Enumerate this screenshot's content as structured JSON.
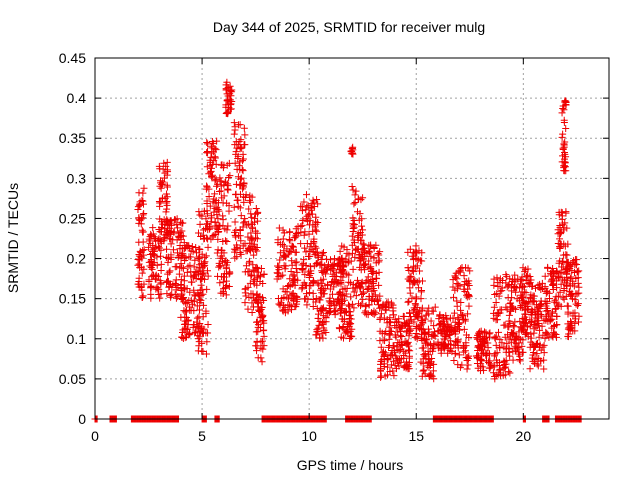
{
  "chart_data": {
    "type": "scatter",
    "title": "Day 344 of 2025, SRMTID for receiver mulg",
    "xlabel": "GPS time / hours",
    "ylabel": "SRMTID / TECUs",
    "xlim": [
      0,
      24
    ],
    "ylim": [
      0,
      0.45
    ],
    "xticks": [
      0,
      5,
      10,
      15,
      20
    ],
    "yticks": [
      0,
      0.05,
      0.1,
      0.15,
      0.2,
      0.25,
      0.3,
      0.35,
      0.4,
      0.45
    ],
    "marker": "+",
    "color": "#ee0000",
    "grid": true,
    "zero_runs": [
      [
        0.0,
        0.1
      ],
      [
        0.7,
        1.0
      ],
      [
        1.7,
        3.9
      ],
      [
        5.0,
        5.2
      ],
      [
        5.6,
        5.8
      ],
      [
        7.8,
        10.8
      ],
      [
        11.7,
        12.9
      ],
      [
        15.8,
        18.6
      ],
      [
        20.0,
        20.1
      ],
      [
        20.9,
        21.2
      ],
      [
        21.5,
        22.7
      ]
    ],
    "clusters": [
      {
        "x": [
          2.0,
          2.3
        ],
        "y": [
          0.15,
          0.29
        ]
      },
      {
        "x": [
          2.5,
          3.1
        ],
        "y": [
          0.15,
          0.24
        ]
      },
      {
        "x": [
          3.0,
          3.4
        ],
        "y": [
          0.22,
          0.32
        ]
      },
      {
        "x": [
          3.3,
          4.2
        ],
        "y": [
          0.15,
          0.25
        ]
      },
      {
        "x": [
          4.0,
          4.9
        ],
        "y": [
          0.1,
          0.22
        ]
      },
      {
        "x": [
          4.8,
          5.3
        ],
        "y": [
          0.08,
          0.26
        ]
      },
      {
        "x": [
          5.2,
          5.7
        ],
        "y": [
          0.22,
          0.35
        ]
      },
      {
        "x": [
          5.7,
          6.3
        ],
        "y": [
          0.15,
          0.32
        ]
      },
      {
        "x": [
          6.1,
          6.4
        ],
        "y": [
          0.38,
          0.42
        ]
      },
      {
        "x": [
          6.5,
          7.0
        ],
        "y": [
          0.2,
          0.37
        ]
      },
      {
        "x": [
          7.0,
          7.6
        ],
        "y": [
          0.13,
          0.28
        ]
      },
      {
        "x": [
          7.5,
          7.9
        ],
        "y": [
          0.07,
          0.19
        ]
      },
      {
        "x": [
          8.5,
          9.5
        ],
        "y": [
          0.13,
          0.24
        ]
      },
      {
        "x": [
          9.6,
          10.4
        ],
        "y": [
          0.14,
          0.28
        ]
      },
      {
        "x": [
          10.3,
          10.9
        ],
        "y": [
          0.1,
          0.21
        ]
      },
      {
        "x": [
          10.9,
          11.6
        ],
        "y": [
          0.13,
          0.2
        ]
      },
      {
        "x": [
          11.4,
          12.0
        ],
        "y": [
          0.1,
          0.22
        ]
      },
      {
        "x": [
          12.0,
          12.5
        ],
        "y": [
          0.13,
          0.29
        ]
      },
      {
        "x": [
          11.95,
          12.05
        ],
        "y": [
          0.33,
          0.34
        ]
      },
      {
        "x": [
          12.5,
          13.3
        ],
        "y": [
          0.13,
          0.22
        ]
      },
      {
        "x": [
          13.3,
          14.0
        ],
        "y": [
          0.05,
          0.15
        ]
      },
      {
        "x": [
          14.0,
          14.7
        ],
        "y": [
          0.06,
          0.13
        ]
      },
      {
        "x": [
          14.6,
          15.3
        ],
        "y": [
          0.1,
          0.22
        ]
      },
      {
        "x": [
          15.2,
          15.9
        ],
        "y": [
          0.05,
          0.14
        ]
      },
      {
        "x": [
          16.0,
          16.7
        ],
        "y": [
          0.08,
          0.13
        ]
      },
      {
        "x": [
          16.7,
          17.5
        ],
        "y": [
          0.06,
          0.19
        ]
      },
      {
        "x": [
          17.8,
          18.5
        ],
        "y": [
          0.06,
          0.11
        ]
      },
      {
        "x": [
          18.6,
          19.4
        ],
        "y": [
          0.05,
          0.18
        ]
      },
      {
        "x": [
          19.4,
          20.0
        ],
        "y": [
          0.07,
          0.18
        ]
      },
      {
        "x": [
          19.9,
          20.4
        ],
        "y": [
          0.1,
          0.19
        ]
      },
      {
        "x": [
          20.3,
          21.0
        ],
        "y": [
          0.06,
          0.17
        ]
      },
      {
        "x": [
          21.0,
          21.6
        ],
        "y": [
          0.1,
          0.19
        ]
      },
      {
        "x": [
          21.6,
          22.1
        ],
        "y": [
          0.14,
          0.26
        ]
      },
      {
        "x": [
          21.8,
          22.0
        ],
        "y": [
          0.3,
          0.4
        ]
      },
      {
        "x": [
          22.0,
          22.6
        ],
        "y": [
          0.1,
          0.2
        ]
      }
    ]
  }
}
